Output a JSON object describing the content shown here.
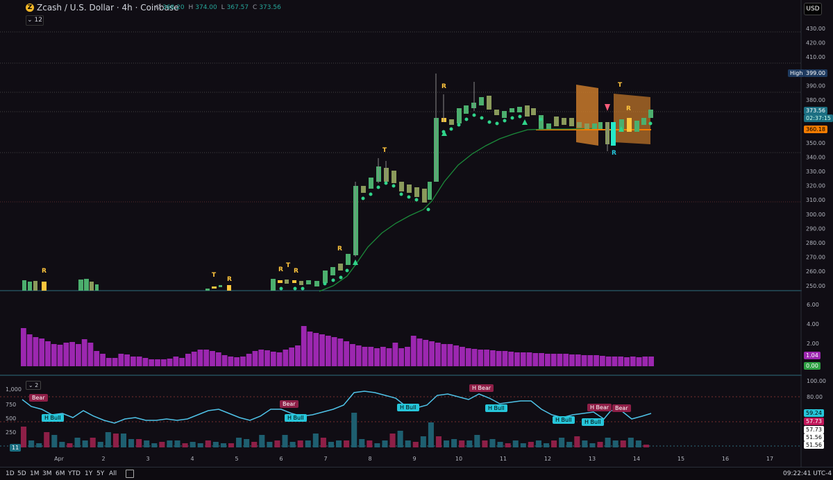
{
  "header": {
    "coin_glyph": "Z",
    "title": "Zcash / U.S. Dollar · 4h · Coinbase",
    "ohlc": {
      "o_label": "O",
      "o": "368.20",
      "h_label": "H",
      "h": "374.00",
      "l_label": "L",
      "l": "367.57",
      "c_label": "C",
      "c": "373.56"
    },
    "indicator_count": "12",
    "currency": "USD"
  },
  "price_scale": [
    "430.00",
    "420.00",
    "410.00",
    "400.00",
    "390.00",
    "380.00",
    "370.00",
    "360.00",
    "350.00",
    "340.00",
    "330.00",
    "320.00",
    "310.00",
    "300.00",
    "290.00",
    "280.00",
    "270.00",
    "260.00",
    "250.00"
  ],
  "price_tags": {
    "high_label": "High",
    "high_value": "399.00",
    "last": "373.56",
    "countdown": "02:37:15",
    "level": "360.18"
  },
  "volume_scale": [
    "6.00",
    "4.00",
    "2.00"
  ],
  "volume_tags": {
    "value": "1.04",
    "zero": "0.00"
  },
  "osc": {
    "toggle": "2",
    "left_scale": [
      "1,000",
      "750",
      "500",
      "250"
    ],
    "right_scale": [
      "100.00",
      "80.00"
    ],
    "tags": {
      "a": "59.24",
      "b": "57.73",
      "c": "57.73",
      "d": "51.56",
      "e": "51.56"
    },
    "left_tag": "11",
    "labels": [
      {
        "text": "Bear",
        "kind": "bear"
      },
      {
        "text": "H Bull",
        "kind": "bull"
      },
      {
        "text": "Bear",
        "kind": "bear"
      },
      {
        "text": "H Bull",
        "kind": "bull"
      },
      {
        "text": "H Bull",
        "kind": "bull"
      },
      {
        "text": "H Bear",
        "kind": "bear"
      },
      {
        "text": "H Bull",
        "kind": "bull"
      },
      {
        "text": "H Bull",
        "kind": "bull"
      },
      {
        "text": "H Bull",
        "kind": "bull"
      },
      {
        "text": "H Bear",
        "kind": "bear"
      },
      {
        "text": "Bear",
        "kind": "bear"
      }
    ]
  },
  "time_axis": [
    "Apr",
    "2",
    "3",
    "4",
    "5",
    "6",
    "7",
    "8",
    "9",
    "10",
    "11",
    "12",
    "13",
    "14",
    "15",
    "16",
    "17"
  ],
  "chart_markers": [
    "R",
    "T",
    "R",
    "R",
    "T",
    "R",
    "R",
    "T",
    "R",
    "T",
    "R",
    "R"
  ],
  "bottom_bar": {
    "timeframes": [
      "1D",
      "5D",
      "1M",
      "3M",
      "6M",
      "YTD",
      "1Y",
      "5Y",
      "All"
    ],
    "clock": "09:22:41 UTC-4"
  },
  "colors": {
    "up": "#4caf6e",
    "down": "#8a9a5b",
    "accent": "#26c6da",
    "volume": "#9c27b0",
    "high": "#1e3a5f",
    "level": "#f57c00",
    "orange_zone": "#d9822b"
  }
}
